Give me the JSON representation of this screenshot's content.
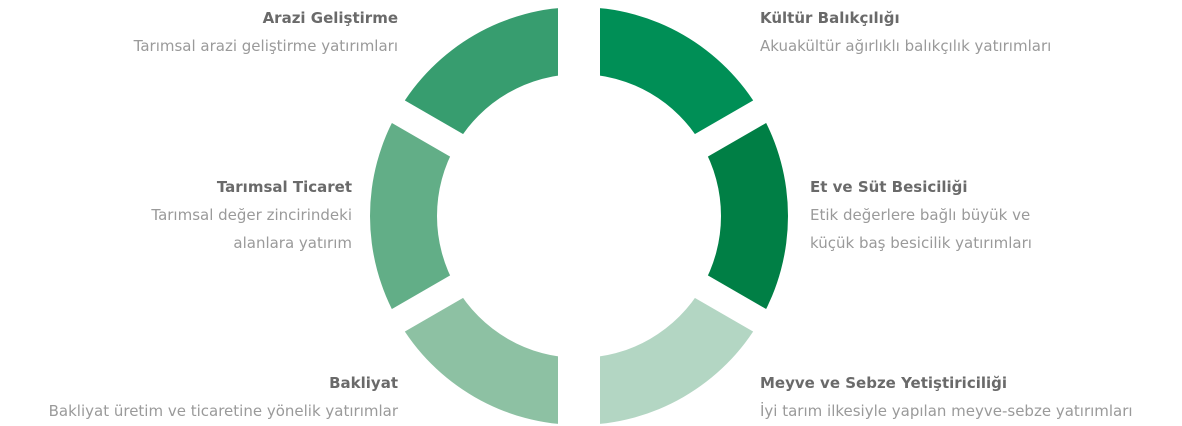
{
  "nodes": [
    {
      "title": "Kültür Balıkçılığı",
      "lines": [
        "Akuakültür ağırlıklı balıkçılık yatırımları"
      ]
    },
    {
      "title": "Et ve Süt Besiciliği",
      "lines": [
        "Etik değerlere bağlı büyük ve",
        "küçük baş besicilik yatırımları"
      ]
    },
    {
      "title": "Meyve ve Sebze Yetiştiriciliği",
      "lines": [
        "İyi tarım ilkesiyle yapılan meyve-sebze yatırımları"
      ]
    },
    {
      "title": "Bakliyat",
      "lines": [
        "Bakliyat üretim ve ticaretine yönelik yatırımlar"
      ]
    },
    {
      "title": "Tarımsal Ticaret",
      "lines": [
        "Tarımsal değer zincirindeki",
        "alanlara yatırım"
      ]
    },
    {
      "title": "Arazi Geliştirme",
      "lines": [
        "Tarımsal arazi geliştirme yatırımları"
      ]
    }
  ]
}
